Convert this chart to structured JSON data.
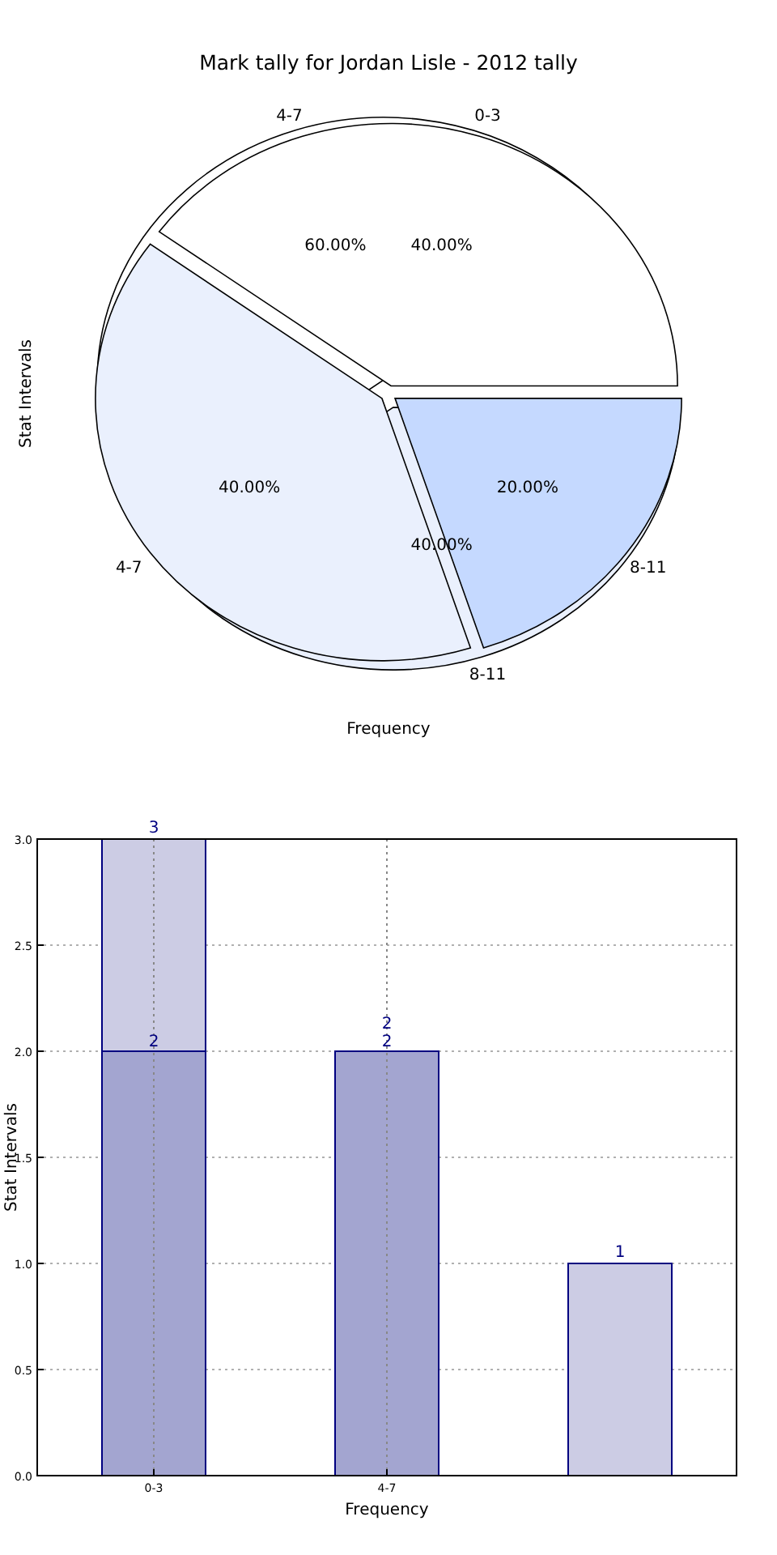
{
  "chart_data": [
    {
      "type": "pie",
      "title": "Mark tally for Jordan Lisle - 2012 tally",
      "xlabel": "Frequency",
      "ylabel": "Stat Intervals",
      "categories": [
        "4-7",
        "8-11"
      ],
      "values": [
        60,
        40
      ],
      "colors": [
        "#ffffff",
        "#eaf0fd"
      ],
      "value_labels": [
        "60.00%",
        "40.00%"
      ]
    },
    {
      "type": "pie",
      "categories": [
        "0-3",
        "4-7",
        "8-11"
      ],
      "values": [
        40,
        40,
        20
      ],
      "colors": [
        "#ffffff",
        "#eaf0fd",
        "#c5d9ff"
      ],
      "value_labels": [
        "40.00%",
        "40.00%",
        "20.00%"
      ]
    },
    {
      "type": "bar",
      "xlabel": "Frequency",
      "ylabel": "Stat Intervals",
      "categories": [
        "0-3",
        "4-7",
        null
      ],
      "stacked": true,
      "series": [
        {
          "color": "#a3a5d0",
          "values": [
            2,
            2,
            null
          ],
          "value_labels": [
            "2",
            "2",
            null
          ]
        },
        {
          "color": "#cccce4",
          "values": [
            1,
            0,
            1
          ]
        }
      ],
      "totals": [
        "3",
        "2",
        "1"
      ],
      "ylim": [
        0,
        3
      ],
      "yticks": [
        {
          "value": 0,
          "label": "0.0"
        },
        {
          "value": 0.5,
          "label": "0.5"
        },
        {
          "value": 1,
          "label": "1.0"
        },
        {
          "value": 1.5,
          "label": "1.5"
        },
        {
          "value": 2,
          "label": "2.0"
        },
        {
          "value": 2.5,
          "label": "2.5"
        },
        {
          "value": 3,
          "label": "3.0"
        }
      ],
      "grid": true
    }
  ]
}
